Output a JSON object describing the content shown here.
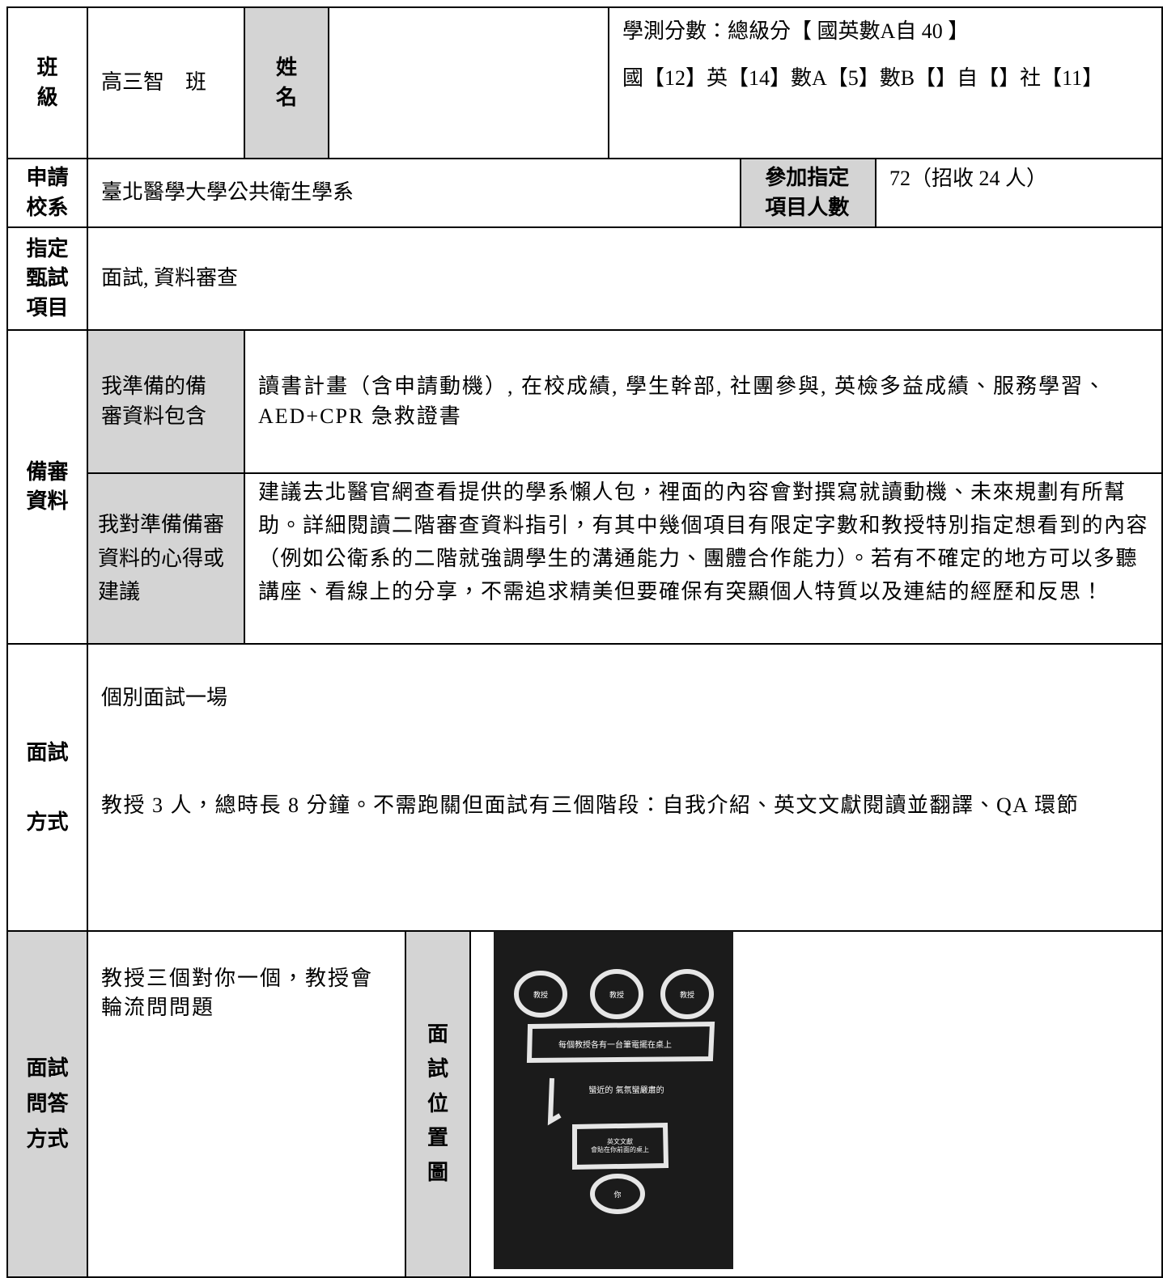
{
  "basic": {
    "class_label": "班級",
    "class_value": "高三智　班",
    "name_label": "姓名",
    "score_line1": "學測分數：總級分【 國英數A自 40 】",
    "score_line2": "國【12】英【14】數A【5】數B【】自【】社【11】"
  },
  "application": {
    "label": "申請校系",
    "value": "臺北醫學大學公共衛生學系",
    "count_label": "參加指定項目人數",
    "count_value": "72（招收 24 人）"
  },
  "exam_items": {
    "label": "指定甄試項目",
    "value": "面試, 資料審查"
  },
  "portfolio": {
    "label": "備審資料",
    "prepared_label": "我準備的備審資料包含",
    "prepared_value": "讀書計畫（含申請動機）, 在校成績, 學生幹部, 社團參與, 英檢多益成績、服務學習、AED+CPR 急救證書",
    "advice_label": "我對準備備審資料的心得或建議",
    "advice_value": "建議去北醫官網查看提供的學系懶人包，裡面的內容會對撰寫就讀動機、未來規劃有所幫助。詳細閱讀二階審查資料指引，有其中幾個項目有限定字數和教授特別指定想看到的內容（例如公衛系的二階就強調學生的溝通能力、團體合作能力）。若有不確定的地方可以多聽講座、看線上的分享，不需追求精美但要確保有突顯個人特質以及連結的經歷和反思！"
  },
  "interview": {
    "label": "面試方式",
    "line1": "個別面試一場",
    "line2": "教授 3 人，總時長 8 分鐘。不需跑關但面試有三個階段：自我介紹、英文文獻閱讀並翻譯、QA 環節"
  },
  "qa": {
    "label": "面試問答方式",
    "value": "教授三個對你一個，教授會輪流問問題",
    "map_label": "面試位置圖",
    "diagram": {
      "professor_1": "教授",
      "professor_2": "教授",
      "professor_3": "教授",
      "desk_note": "每個教授各有一台筆電擺在桌上",
      "atmosphere": "蠻近的 氣氛蠻嚴肅的",
      "paper_line1": "英文文獻",
      "paper_line2": "會貼在你前面的桌上",
      "you": "你"
    }
  }
}
